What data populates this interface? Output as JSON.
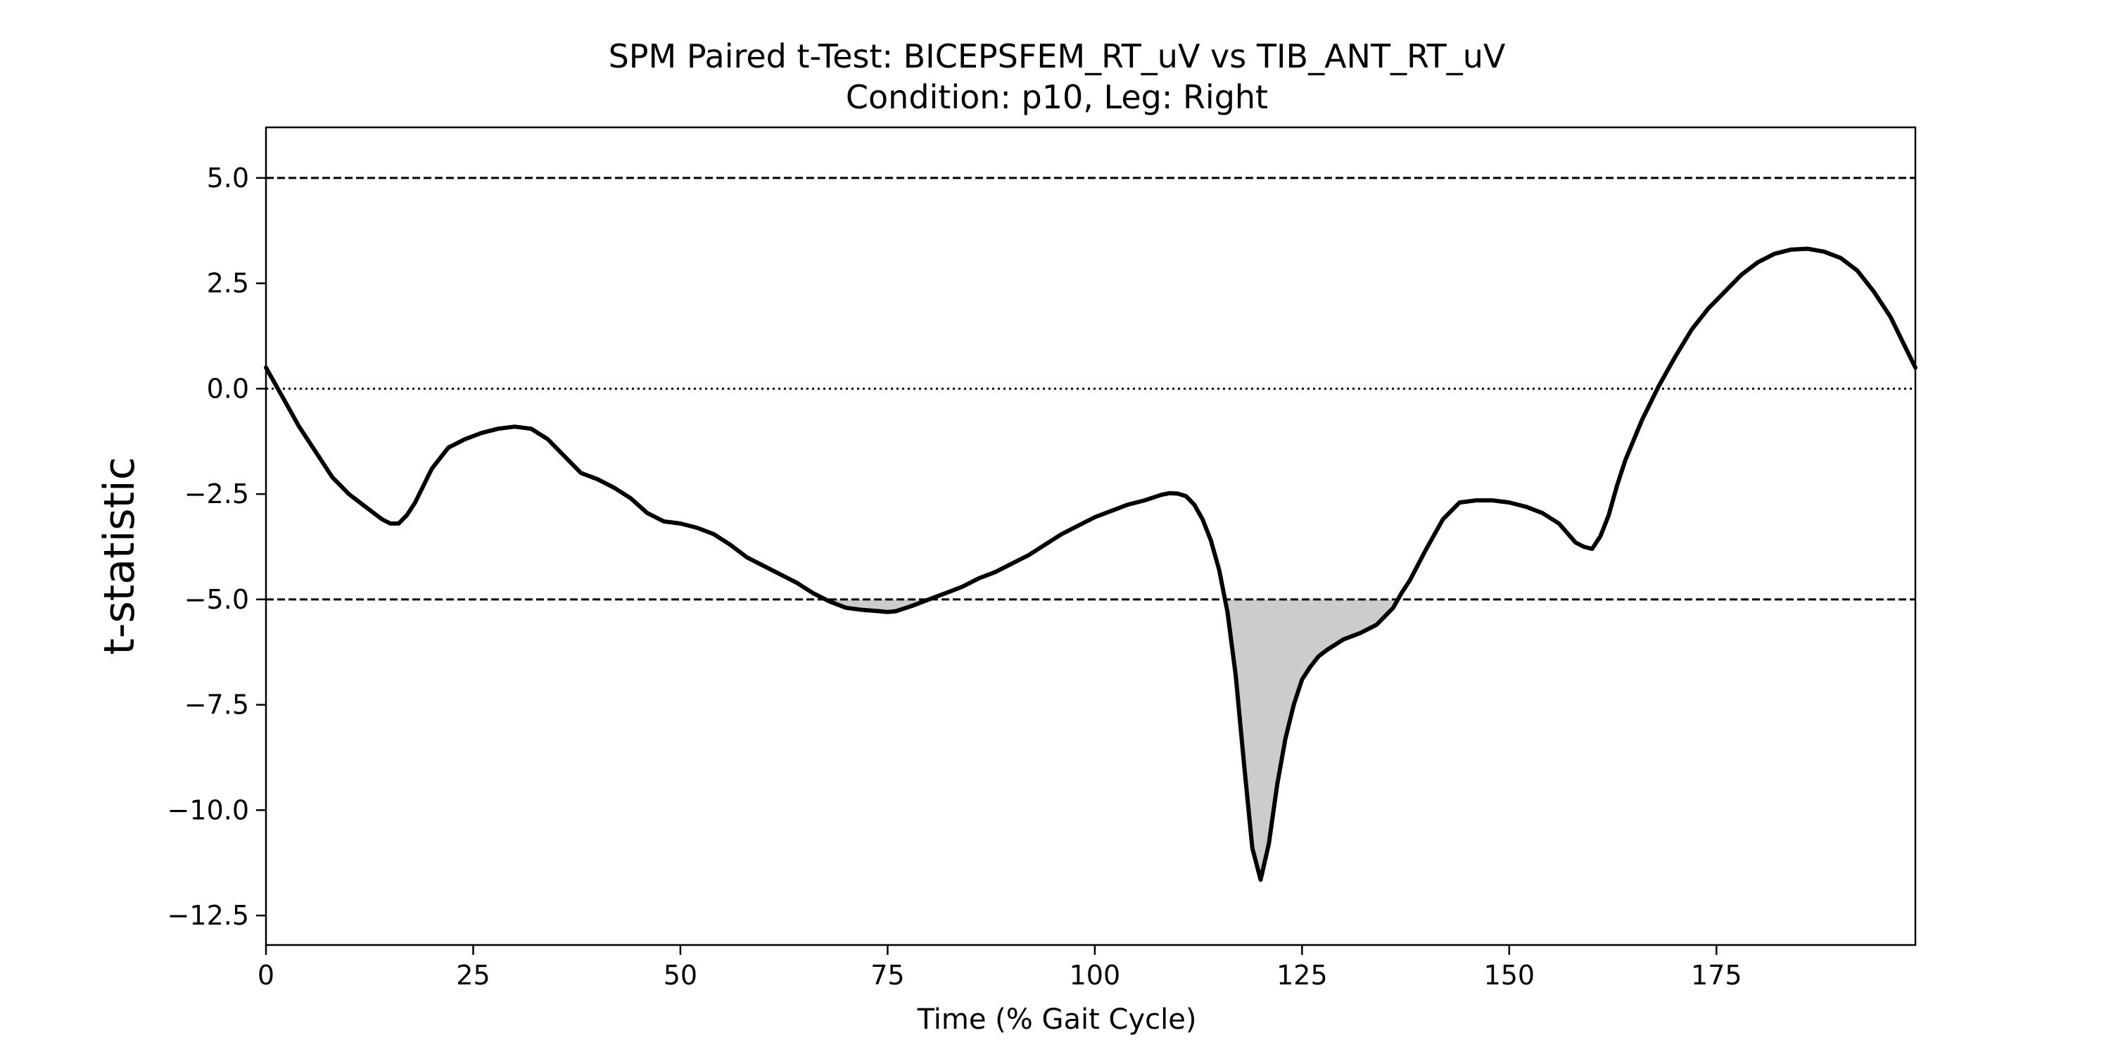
{
  "chart_data": {
    "type": "line",
    "title": "SPM Paired t-Test: BICEPSFEM_RT_uV vs TIB_ANT_RT_uV",
    "subtitle": "Condition: p10, Leg: Right",
    "xlabel": "Time (% Gait Cycle)",
    "ylabel": "t-statistic",
    "xlim": [
      0,
      199
    ],
    "ylim": [
      -13.2,
      6.2
    ],
    "xticks": [
      0,
      25,
      50,
      75,
      100,
      125,
      150,
      175
    ],
    "xtick_labels": [
      "0",
      "25",
      "50",
      "75",
      "100",
      "125",
      "150",
      "175"
    ],
    "yticks": [
      5.0,
      2.5,
      0.0,
      -2.5,
      -5.0,
      -7.5,
      -10.0,
      -12.5
    ],
    "ytick_labels": [
      "5.0",
      "2.5",
      "0.0",
      "−2.5",
      "−5.0",
      "−7.5",
      "−10.0",
      "−12.5"
    ],
    "grid": false,
    "threshold_upper": 5.0,
    "threshold_lower": -5.0,
    "zero_line": 0.0,
    "line_color": "#000000",
    "fill_color": "#cccccc",
    "series": [
      {
        "x": [
          0,
          2,
          4,
          6,
          8,
          10,
          12,
          14,
          15,
          16,
          17,
          18,
          20,
          22,
          24,
          26,
          28,
          30,
          32,
          34,
          36,
          38,
          40,
          42,
          44,
          46,
          48,
          50,
          52,
          54,
          56,
          58,
          60,
          62,
          64,
          66,
          68,
          70,
          72,
          74,
          75,
          76,
          78,
          80,
          82,
          84,
          86,
          88,
          90,
          92,
          94,
          96,
          98,
          100,
          102,
          104,
          106,
          108,
          109,
          110,
          111,
          112,
          113,
          114,
          115,
          116,
          117,
          118,
          119,
          120,
          121,
          122,
          123,
          124,
          125,
          126,
          127,
          128,
          130,
          132,
          134,
          136,
          137,
          138,
          140,
          142,
          144,
          146,
          148,
          150,
          152,
          154,
          156,
          158,
          159,
          160,
          161,
          162,
          163,
          164,
          166,
          168,
          170,
          172,
          174,
          176,
          178,
          180,
          182,
          184,
          186,
          188,
          190,
          192,
          194,
          196,
          198,
          199
        ],
        "y": [
          0.5,
          -0.2,
          -0.9,
          -1.5,
          -2.1,
          -2.5,
          -2.8,
          -3.1,
          -3.2,
          -3.2,
          -3.0,
          -2.7,
          -1.9,
          -1.4,
          -1.2,
          -1.05,
          -0.95,
          -0.9,
          -0.95,
          -1.2,
          -1.6,
          -2.0,
          -2.15,
          -2.35,
          -2.6,
          -2.95,
          -3.15,
          -3.2,
          -3.3,
          -3.45,
          -3.7,
          -4.0,
          -4.2,
          -4.4,
          -4.6,
          -4.85,
          -5.05,
          -5.2,
          -5.25,
          -5.28,
          -5.3,
          -5.28,
          -5.15,
          -5.0,
          -4.85,
          -4.7,
          -4.5,
          -4.35,
          -4.15,
          -3.95,
          -3.7,
          -3.45,
          -3.25,
          -3.05,
          -2.9,
          -2.75,
          -2.65,
          -2.52,
          -2.48,
          -2.49,
          -2.55,
          -2.75,
          -3.1,
          -3.6,
          -4.3,
          -5.3,
          -6.8,
          -8.9,
          -10.9,
          -11.65,
          -10.8,
          -9.4,
          -8.3,
          -7.5,
          -6.9,
          -6.6,
          -6.35,
          -6.2,
          -5.95,
          -5.8,
          -5.6,
          -5.2,
          -4.85,
          -4.55,
          -3.8,
          -3.1,
          -2.7,
          -2.65,
          -2.65,
          -2.7,
          -2.8,
          -2.95,
          -3.2,
          -3.65,
          -3.75,
          -3.8,
          -3.5,
          -3.0,
          -2.3,
          -1.7,
          -0.75,
          0.05,
          0.75,
          1.4,
          1.9,
          2.3,
          2.7,
          3.0,
          3.2,
          3.3,
          3.32,
          3.25,
          3.1,
          2.8,
          2.3,
          1.7,
          0.9,
          0.5
        ]
      }
    ]
  }
}
